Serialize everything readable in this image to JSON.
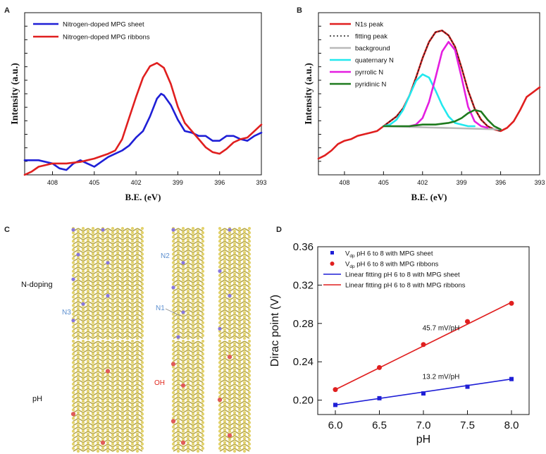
{
  "panel_letters": {
    "a": "A",
    "b": "B",
    "c": "C",
    "d": "D"
  },
  "colors": {
    "blue": "#1f1fd6",
    "red": "#e01f1f",
    "cyan": "#22e8ee",
    "magenta": "#e41ee0",
    "green": "#1e7a1e",
    "gray": "#b9b9b9",
    "dark_red": "#8b0000",
    "atom_c": "#e3d26a",
    "atom_n": "#8877dd",
    "atom_o": "#e05a5a",
    "label_n": "#5c8fcf",
    "label_oh": "#e0281f"
  },
  "chart_data": [
    {
      "type": "line",
      "id": "A",
      "xlabel": "B.E. (eV)",
      "ylabel": "Intensity (a.u.)",
      "xlim": [
        410,
        393
      ],
      "xticks": [
        408,
        405,
        402,
        399,
        396,
        393
      ],
      "ylim": [
        0,
        1
      ],
      "series": [
        {
          "name": "Nitrogen-doped MPG sheet",
          "color": "#1f1fd6",
          "x": [
            410,
            409,
            408,
            407.5,
            407,
            406.5,
            406,
            405.5,
            405,
            404.5,
            404,
            403.5,
            403,
            402.5,
            402,
            401.5,
            401,
            400.5,
            400.2,
            400,
            399.5,
            399,
            398.5,
            398,
            397.5,
            397,
            396.5,
            396,
            395.5,
            395,
            394.5,
            394,
            393.5,
            393
          ],
          "values": [
            0.09,
            0.09,
            0.07,
            0.04,
            0.03,
            0.07,
            0.09,
            0.07,
            0.05,
            0.08,
            0.11,
            0.13,
            0.15,
            0.18,
            0.23,
            0.27,
            0.36,
            0.47,
            0.5,
            0.49,
            0.43,
            0.34,
            0.27,
            0.26,
            0.24,
            0.24,
            0.21,
            0.21,
            0.24,
            0.24,
            0.22,
            0.21,
            0.24,
            0.26
          ]
        },
        {
          "name": "Nitrogen-doped MPG ribbons",
          "color": "#e01f1f",
          "x": [
            410,
            409.5,
            409,
            408,
            407,
            406,
            405.5,
            405,
            404,
            403.5,
            403,
            402.5,
            402,
            401.5,
            401,
            400.5,
            400,
            399.5,
            399,
            398.5,
            398,
            397.5,
            397,
            396.5,
            396,
            395.5,
            395,
            394.5,
            394,
            393.5,
            393
          ],
          "values": [
            0.0,
            0.02,
            0.05,
            0.07,
            0.07,
            0.08,
            0.09,
            0.1,
            0.13,
            0.15,
            0.22,
            0.35,
            0.48,
            0.6,
            0.67,
            0.69,
            0.66,
            0.56,
            0.42,
            0.32,
            0.27,
            0.22,
            0.17,
            0.14,
            0.13,
            0.16,
            0.2,
            0.22,
            0.23,
            0.27,
            0.31
          ]
        }
      ]
    },
    {
      "type": "line",
      "id": "B",
      "xlabel": "B.E. (eV)",
      "ylabel": "Intensity (a.u.)",
      "xlim": [
        410,
        393
      ],
      "xticks": [
        408,
        405,
        402,
        399,
        396,
        393
      ],
      "ylim": [
        0,
        1
      ],
      "series": [
        {
          "name": "N1s peak",
          "color": "#e01f1f",
          "x": [
            410,
            409.5,
            409,
            408.5,
            408,
            407.5,
            407,
            406.5,
            406,
            405.5,
            405,
            404.5,
            404,
            403.5,
            403,
            402.5,
            402,
            401.5,
            401,
            400.5,
            400,
            399.5,
            399,
            398.5,
            398,
            397.5,
            397,
            396.5,
            396,
            395.5,
            395,
            394.5,
            394,
            393.5,
            393
          ],
          "values": [
            0.1,
            0.12,
            0.15,
            0.19,
            0.21,
            0.22,
            0.24,
            0.25,
            0.26,
            0.27,
            0.3,
            0.33,
            0.36,
            0.41,
            0.49,
            0.6,
            0.72,
            0.82,
            0.88,
            0.89,
            0.86,
            0.79,
            0.66,
            0.52,
            0.41,
            0.34,
            0.3,
            0.28,
            0.27,
            0.29,
            0.33,
            0.4,
            0.48,
            0.51,
            0.54
          ]
        },
        {
          "name": "fitting peak",
          "color": "#222222",
          "dash": "2,3",
          "x": [
            405,
            404.5,
            404,
            403.5,
            403,
            402.5,
            402,
            401.5,
            401,
            400.5,
            400,
            399.5,
            399,
            398.5,
            398,
            397.5,
            397,
            396.5,
            396
          ],
          "values": [
            0.3,
            0.33,
            0.36,
            0.41,
            0.49,
            0.6,
            0.72,
            0.82,
            0.88,
            0.89,
            0.86,
            0.79,
            0.66,
            0.52,
            0.41,
            0.34,
            0.3,
            0.28,
            0.27
          ]
        },
        {
          "name": "background",
          "color": "#b9b9b9",
          "x": [
            405,
            396
          ],
          "values": [
            0.3,
            0.28
          ]
        },
        {
          "name": "quaternary N",
          "color": "#22e8ee",
          "x": [
            405,
            404.5,
            404,
            403.5,
            403,
            402.5,
            402,
            401.5,
            401,
            400.5,
            400,
            399.5,
            399,
            398.5,
            398
          ],
          "values": [
            0.3,
            0.31,
            0.34,
            0.4,
            0.49,
            0.58,
            0.62,
            0.6,
            0.52,
            0.43,
            0.36,
            0.32,
            0.31,
            0.3,
            0.3
          ]
        },
        {
          "name": "pyrrolic N",
          "color": "#e41ee0",
          "x": [
            403,
            402.5,
            402,
            401.5,
            401,
            400.5,
            400,
            399.5,
            399,
            398.5,
            398,
            397.5,
            397
          ],
          "values": [
            0.3,
            0.31,
            0.35,
            0.45,
            0.6,
            0.76,
            0.82,
            0.77,
            0.6,
            0.42,
            0.33,
            0.3,
            0.29
          ]
        },
        {
          "name": "pyridinic N",
          "color": "#1e7a1e",
          "x": [
            405,
            404,
            403,
            402,
            401,
            400,
            399.5,
            399,
            398.5,
            398,
            397.5,
            397,
            396.5,
            396
          ],
          "values": [
            0.3,
            0.3,
            0.3,
            0.31,
            0.31,
            0.32,
            0.33,
            0.35,
            0.38,
            0.4,
            0.39,
            0.34,
            0.3,
            0.28
          ]
        }
      ]
    },
    {
      "type": "scatter",
      "id": "D",
      "xlabel": "pH",
      "ylabel": "Dirac point (V)",
      "xlim": [
        5.8,
        8.2
      ],
      "ylim": [
        0.185,
        0.36
      ],
      "xticks": [
        "6.0",
        "6.5",
        "7.0",
        "7.5",
        "8.0"
      ],
      "yticks": [
        "0.20",
        "0.24",
        "0.28",
        "0.32",
        "0.36"
      ],
      "series": [
        {
          "name": "pH 6 to 8 with MPG sheet",
          "name_prefix": "V",
          "name_subscript": "dp",
          "color": "#1f1fd6",
          "marker": "square",
          "x": [
            6.0,
            6.5,
            7.0,
            7.5,
            8.0
          ],
          "values": [
            0.195,
            0.202,
            0.207,
            0.214,
            0.222
          ]
        },
        {
          "name": "pH 6 to 8 with MPG ribbons",
          "name_prefix": "V",
          "name_subscript": "dp",
          "color": "#e01f1f",
          "marker": "circle",
          "x": [
            6.0,
            6.5,
            7.0,
            7.5,
            8.0
          ],
          "values": [
            0.211,
            0.234,
            0.258,
            0.282,
            0.301
          ]
        },
        {
          "name": "Linear fitting pH 6 to 8 with MPG sheet",
          "color": "#1f1fd6",
          "marker": "line",
          "x": [
            6.0,
            8.0
          ],
          "values": [
            0.195,
            0.222
          ]
        },
        {
          "name": "Linear fitting pH 6 to 8 with MPG ribbons",
          "color": "#e01f1f",
          "marker": "line",
          "x": [
            6.0,
            8.0
          ],
          "values": [
            0.211,
            0.302
          ]
        }
      ],
      "annotations": [
        "45.7 mV/pH",
        "13.2 mV/pH"
      ]
    }
  ],
  "panel_c": {
    "row_labels": [
      "N-doping",
      "pH"
    ],
    "atom_labels": [
      "N2",
      "N1",
      "N3",
      "OH"
    ]
  }
}
